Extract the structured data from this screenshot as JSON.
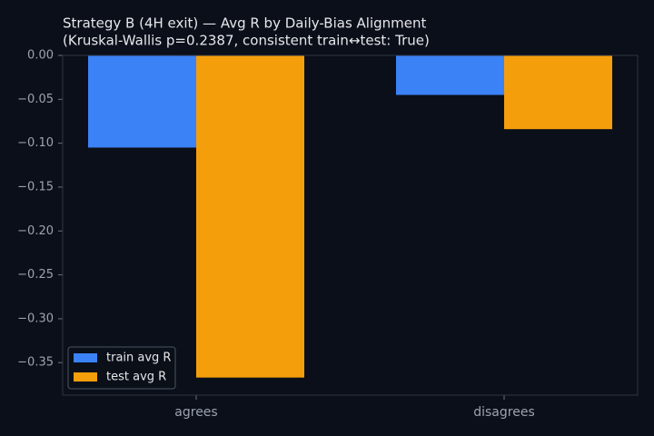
{
  "chart_data": {
    "type": "bar",
    "title": "Strategy B (4H exit) — Avg R by Daily-Bias Alignment",
    "subtitle": "(Kruskal-Wallis p=0.2387, consistent train↔test: True)",
    "categories": [
      "agrees",
      "disagrees"
    ],
    "series": [
      {
        "name": "train avg R",
        "color": "#3b82f6",
        "values": [
          -0.105,
          -0.045
        ]
      },
      {
        "name": "test avg R",
        "color": "#f59e0b",
        "values": [
          -0.367,
          -0.084
        ]
      }
    ],
    "ylim": [
      -0.387,
      0
    ],
    "yticks": [
      {
        "value": 0,
        "label": "0.00"
      },
      {
        "value": -0.05,
        "label": "−0.05"
      },
      {
        "value": -0.1,
        "label": "−0.10"
      },
      {
        "value": -0.15,
        "label": "−0.15"
      },
      {
        "value": -0.2,
        "label": "−0.20"
      },
      {
        "value": -0.25,
        "label": "−0.25"
      },
      {
        "value": -0.3,
        "label": "−0.30"
      },
      {
        "value": -0.35,
        "label": "−0.35"
      }
    ],
    "legend": "lower left"
  }
}
